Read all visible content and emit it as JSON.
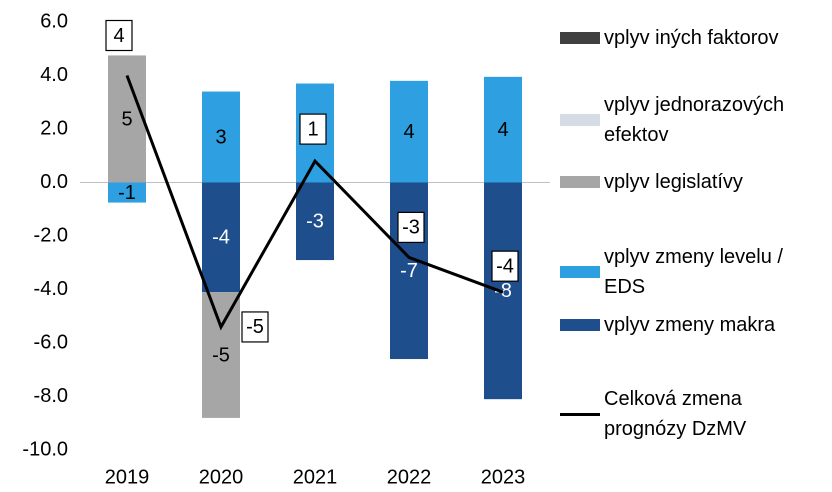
{
  "chart_data": {
    "type": "bar",
    "categories": [
      "2019",
      "2020",
      "2021",
      "2022",
      "2023"
    ],
    "ylim": [
      -10,
      6
    ],
    "yticks": [
      {
        "value": -10,
        "label": "-10.0"
      },
      {
        "value": -8,
        "label": "-8.0"
      },
      {
        "value": -6,
        "label": "-6.0"
      },
      {
        "value": -4,
        "label": "-4.0"
      },
      {
        "value": -2,
        "label": "-2.0"
      },
      {
        "value": 0,
        "label": "0.0"
      },
      {
        "value": 2,
        "label": "2.0"
      },
      {
        "value": 4,
        "label": "4.0"
      },
      {
        "value": 6,
        "label": "6.0"
      }
    ],
    "series": [
      {
        "name": "vplyv iných faktorov",
        "color": "#404040",
        "values": [
          0,
          0,
          0,
          0,
          0
        ]
      },
      {
        "name": "vplyv jednorazových efektov",
        "color": "#d6dce5",
        "values": [
          0,
          0,
          0,
          0,
          0
        ]
      },
      {
        "name": "vplyv legislatívy",
        "color": "#a6a6a6",
        "values": [
          4.75,
          -4.7,
          0,
          0,
          0
        ],
        "value_labels": [
          "5",
          "-5",
          null,
          null,
          null
        ]
      },
      {
        "name": "vplyv zmeny levelu / EDS",
        "color": "#2e9fe0",
        "values": [
          -0.75,
          3.4,
          3.7,
          3.8,
          3.95
        ],
        "value_labels": [
          "-1",
          "3",
          "4",
          "4",
          "4"
        ]
      },
      {
        "name": "vplyv zmeny makra",
        "color": "#1f4e8c",
        "values": [
          0,
          -4.1,
          -2.9,
          -6.6,
          -8.1
        ],
        "value_labels": [
          null,
          "-4",
          "-3",
          "-7",
          "-8"
        ]
      },
      {
        "name": "Celková zmena prognózy DzMV",
        "type": "line",
        "color": "#000000",
        "values": [
          4.0,
          -5.4,
          0.8,
          -2.8,
          -4.1
        ],
        "value_labels": [
          "4",
          "-5",
          "1",
          "-3",
          "-4"
        ]
      }
    ]
  }
}
